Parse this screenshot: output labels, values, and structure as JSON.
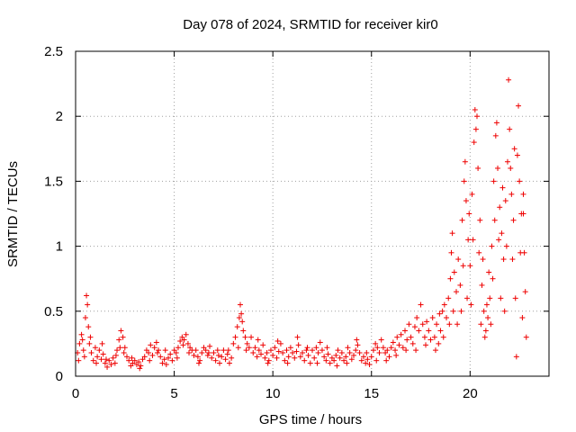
{
  "chart_data": {
    "type": "scatter",
    "title": "Day 078 of 2024, SRMTID for receiver kir0",
    "xlabel": "GPS time / hours",
    "ylabel": "SRMTID / TECUs",
    "xlim": [
      0,
      24
    ],
    "ylim": [
      0,
      2.5
    ],
    "xticks": [
      0,
      5,
      10,
      15,
      20
    ],
    "xtick_labels": [
      "0",
      "5",
      "10",
      "15",
      "20"
    ],
    "yticks": [
      0,
      0.5,
      1,
      1.5,
      2,
      2.5
    ],
    "ytick_labels": [
      "0",
      "0.5",
      "1",
      "1.5",
      "2",
      "2.5"
    ],
    "grid": true,
    "marker": "+",
    "series": [
      {
        "name": "kir0",
        "color": "#ee0000",
        "points": [
          [
            0.1,
            0.18
          ],
          [
            0.2,
            0.25
          ],
          [
            0.3,
            0.32
          ],
          [
            0.4,
            0.2
          ],
          [
            0.5,
            0.45
          ],
          [
            0.55,
            0.62
          ],
          [
            0.6,
            0.55
          ],
          [
            0.65,
            0.38
          ],
          [
            0.7,
            0.25
          ],
          [
            0.8,
            0.18
          ],
          [
            0.9,
            0.12
          ],
          [
            1.0,
            0.22
          ],
          [
            1.1,
            0.15
          ],
          [
            1.2,
            0.2
          ],
          [
            1.3,
            0.13
          ],
          [
            1.4,
            0.17
          ],
          [
            1.5,
            0.1
          ],
          [
            1.6,
            0.07
          ],
          [
            1.7,
            0.12
          ],
          [
            1.8,
            0.09
          ],
          [
            1.9,
            0.14
          ],
          [
            2.0,
            0.1
          ],
          [
            2.1,
            0.2
          ],
          [
            2.2,
            0.28
          ],
          [
            2.3,
            0.35
          ],
          [
            2.4,
            0.3
          ],
          [
            2.5,
            0.22
          ],
          [
            2.6,
            0.15
          ],
          [
            2.7,
            0.12
          ],
          [
            2.8,
            0.08
          ],
          [
            2.9,
            0.1
          ],
          [
            3.0,
            0.12
          ],
          [
            3.1,
            0.09
          ],
          [
            3.2,
            0.11
          ],
          [
            3.3,
            0.08
          ],
          [
            3.4,
            0.13
          ],
          [
            3.5,
            0.15
          ],
          [
            3.6,
            0.2
          ],
          [
            3.7,
            0.18
          ],
          [
            3.8,
            0.24
          ],
          [
            3.9,
            0.16
          ],
          [
            4.0,
            0.22
          ],
          [
            4.1,
            0.26
          ],
          [
            4.2,
            0.2
          ],
          [
            4.3,
            0.15
          ],
          [
            4.4,
            0.1
          ],
          [
            4.5,
            0.13
          ],
          [
            4.6,
            0.09
          ],
          [
            4.7,
            0.14
          ],
          [
            4.8,
            0.17
          ],
          [
            4.9,
            0.12
          ],
          [
            5.0,
            0.2
          ],
          [
            5.1,
            0.18
          ],
          [
            5.2,
            0.22
          ],
          [
            5.3,
            0.27
          ],
          [
            5.4,
            0.3
          ],
          [
            5.5,
            0.28
          ],
          [
            5.6,
            0.32
          ],
          [
            5.7,
            0.25
          ],
          [
            5.8,
            0.22
          ],
          [
            5.9,
            0.2
          ],
          [
            6.0,
            0.16
          ],
          [
            6.1,
            0.2
          ],
          [
            6.2,
            0.15
          ],
          [
            6.3,
            0.12
          ],
          [
            6.4,
            0.18
          ],
          [
            6.5,
            0.22
          ],
          [
            6.6,
            0.2
          ],
          [
            6.7,
            0.16
          ],
          [
            6.8,
            0.23
          ],
          [
            6.9,
            0.14
          ],
          [
            7.0,
            0.18
          ],
          [
            7.1,
            0.12
          ],
          [
            7.2,
            0.2
          ],
          [
            7.3,
            0.1
          ],
          [
            7.4,
            0.15
          ],
          [
            7.5,
            0.2
          ],
          [
            7.6,
            0.13
          ],
          [
            7.7,
            0.17
          ],
          [
            7.8,
            0.1
          ],
          [
            7.9,
            0.14
          ],
          [
            8.0,
            0.25
          ],
          [
            8.1,
            0.3
          ],
          [
            8.2,
            0.38
          ],
          [
            8.3,
            0.45
          ],
          [
            8.35,
            0.55
          ],
          [
            8.4,
            0.48
          ],
          [
            8.5,
            0.35
          ],
          [
            8.6,
            0.3
          ],
          [
            8.7,
            0.25
          ],
          [
            8.8,
            0.22
          ],
          [
            8.9,
            0.3
          ],
          [
            9.0,
            0.18
          ],
          [
            9.1,
            0.22
          ],
          [
            9.2,
            0.15
          ],
          [
            9.3,
            0.2
          ],
          [
            9.4,
            0.17
          ],
          [
            9.5,
            0.24
          ],
          [
            9.6,
            0.14
          ],
          [
            9.7,
            0.18
          ],
          [
            9.8,
            0.12
          ],
          [
            9.9,
            0.2
          ],
          [
            10.0,
            0.16
          ],
          [
            10.1,
            0.22
          ],
          [
            10.2,
            0.14
          ],
          [
            10.3,
            0.19
          ],
          [
            10.4,
            0.25
          ],
          [
            10.5,
            0.18
          ],
          [
            10.6,
            0.12
          ],
          [
            10.7,
            0.2
          ],
          [
            10.8,
            0.15
          ],
          [
            10.9,
            0.22
          ],
          [
            11.0,
            0.18
          ],
          [
            11.1,
            0.14
          ],
          [
            11.2,
            0.19
          ],
          [
            11.3,
            0.24
          ],
          [
            11.4,
            0.15
          ],
          [
            11.5,
            0.18
          ],
          [
            11.6,
            0.12
          ],
          [
            11.7,
            0.2
          ],
          [
            11.8,
            0.16
          ],
          [
            11.9,
            0.1
          ],
          [
            12.0,
            0.2
          ],
          [
            12.1,
            0.14
          ],
          [
            12.2,
            0.22
          ],
          [
            12.3,
            0.18
          ],
          [
            12.4,
            0.26
          ],
          [
            12.5,
            0.2
          ],
          [
            12.6,
            0.15
          ],
          [
            12.7,
            0.12
          ],
          [
            12.8,
            0.17
          ],
          [
            12.9,
            0.1
          ],
          [
            13.0,
            0.14
          ],
          [
            13.1,
            0.12
          ],
          [
            13.2,
            0.16
          ],
          [
            13.3,
            0.2
          ],
          [
            13.4,
            0.14
          ],
          [
            13.5,
            0.18
          ],
          [
            13.6,
            0.12
          ],
          [
            13.7,
            0.15
          ],
          [
            13.8,
            0.22
          ],
          [
            13.9,
            0.18
          ],
          [
            14.0,
            0.13
          ],
          [
            14.1,
            0.16
          ],
          [
            14.2,
            0.2
          ],
          [
            14.3,
            0.24
          ],
          [
            14.4,
            0.18
          ],
          [
            14.5,
            0.12
          ],
          [
            14.6,
            0.15
          ],
          [
            14.7,
            0.1
          ],
          [
            14.8,
            0.13
          ],
          [
            14.9,
            0.09
          ],
          [
            15.0,
            0.15
          ],
          [
            15.1,
            0.2
          ],
          [
            15.2,
            0.25
          ],
          [
            15.3,
            0.22
          ],
          [
            15.4,
            0.18
          ],
          [
            15.5,
            0.28
          ],
          [
            15.6,
            0.22
          ],
          [
            15.7,
            0.18
          ],
          [
            15.8,
            0.2
          ],
          [
            15.9,
            0.15
          ],
          [
            16.0,
            0.22
          ],
          [
            16.1,
            0.26
          ],
          [
            16.2,
            0.2
          ],
          [
            16.3,
            0.3
          ],
          [
            16.4,
            0.24
          ],
          [
            16.5,
            0.32
          ],
          [
            16.6,
            0.22
          ],
          [
            16.7,
            0.35
          ],
          [
            16.8,
            0.28
          ],
          [
            16.9,
            0.4
          ],
          [
            17.0,
            0.3
          ],
          [
            17.1,
            0.25
          ],
          [
            17.2,
            0.38
          ],
          [
            17.3,
            0.45
          ],
          [
            17.4,
            0.35
          ],
          [
            17.5,
            0.55
          ],
          [
            17.6,
            0.4
          ],
          [
            17.7,
            0.3
          ],
          [
            17.8,
            0.42
          ],
          [
            17.9,
            0.35
          ],
          [
            18.0,
            0.28
          ],
          [
            18.1,
            0.45
          ],
          [
            18.2,
            0.3
          ],
          [
            18.3,
            0.4
          ],
          [
            18.4,
            0.25
          ],
          [
            18.5,
            0.35
          ],
          [
            18.6,
            0.5
          ],
          [
            18.7,
            0.55
          ],
          [
            18.8,
            0.45
          ],
          [
            18.9,
            0.6
          ],
          [
            19.0,
            0.75
          ],
          [
            19.05,
            0.95
          ],
          [
            19.1,
            1.1
          ],
          [
            19.2,
            0.8
          ],
          [
            19.3,
            0.65
          ],
          [
            19.4,
            0.9
          ],
          [
            19.5,
            0.7
          ],
          [
            19.6,
            1.2
          ],
          [
            19.7,
            1.5
          ],
          [
            19.75,
            1.65
          ],
          [
            19.8,
            1.35
          ],
          [
            19.9,
            1.05
          ],
          [
            20.0,
            0.85
          ],
          [
            20.1,
            1.4
          ],
          [
            20.2,
            1.8
          ],
          [
            20.25,
            2.05
          ],
          [
            20.3,
            1.9
          ],
          [
            20.35,
            2.0
          ],
          [
            20.4,
            1.6
          ],
          [
            20.5,
            1.2
          ],
          [
            20.6,
            0.7
          ],
          [
            20.7,
            0.5
          ],
          [
            20.8,
            0.35
          ],
          [
            20.9,
            0.45
          ],
          [
            21.0,
            0.6
          ],
          [
            21.1,
            1.0
          ],
          [
            21.2,
            1.5
          ],
          [
            21.3,
            1.85
          ],
          [
            21.35,
            1.95
          ],
          [
            21.4,
            1.6
          ],
          [
            21.5,
            1.3
          ],
          [
            21.6,
            1.1
          ],
          [
            21.7,
            0.9
          ],
          [
            21.8,
            1.35
          ],
          [
            21.9,
            1.65
          ],
          [
            21.95,
            2.28
          ],
          [
            22.0,
            1.9
          ],
          [
            22.1,
            1.4
          ],
          [
            22.2,
            1.2
          ],
          [
            22.3,
            0.6
          ],
          [
            22.35,
            0.15
          ],
          [
            22.4,
            1.7
          ],
          [
            22.45,
            2.08
          ],
          [
            22.5,
            1.5
          ],
          [
            22.6,
            1.25
          ],
          [
            22.7,
            1.4
          ],
          [
            22.75,
            0.95
          ],
          [
            22.8,
            0.65
          ],
          [
            22.85,
            0.3
          ],
          [
            0.15,
            0.12
          ],
          [
            0.35,
            0.28
          ],
          [
            0.45,
            0.15
          ],
          [
            0.75,
            0.3
          ],
          [
            1.05,
            0.1
          ],
          [
            1.35,
            0.25
          ],
          [
            1.55,
            0.13
          ],
          [
            2.05,
            0.16
          ],
          [
            2.25,
            0.22
          ],
          [
            2.45,
            0.18
          ],
          [
            2.85,
            0.14
          ],
          [
            3.25,
            0.06
          ],
          [
            3.75,
            0.12
          ],
          [
            4.15,
            0.18
          ],
          [
            4.55,
            0.2
          ],
          [
            5.15,
            0.14
          ],
          [
            5.45,
            0.24
          ],
          [
            5.75,
            0.18
          ],
          [
            6.25,
            0.1
          ],
          [
            6.75,
            0.18
          ],
          [
            7.25,
            0.16
          ],
          [
            7.75,
            0.2
          ],
          [
            8.25,
            0.22
          ],
          [
            8.45,
            0.42
          ],
          [
            8.65,
            0.2
          ],
          [
            9.25,
            0.28
          ],
          [
            9.75,
            0.1
          ],
          [
            10.25,
            0.27
          ],
          [
            10.75,
            0.1
          ],
          [
            11.25,
            0.3
          ],
          [
            11.75,
            0.22
          ],
          [
            12.25,
            0.1
          ],
          [
            12.75,
            0.22
          ],
          [
            13.25,
            0.08
          ],
          [
            13.75,
            0.1
          ],
          [
            14.25,
            0.28
          ],
          [
            14.75,
            0.18
          ],
          [
            15.25,
            0.12
          ],
          [
            15.75,
            0.12
          ],
          [
            16.25,
            0.16
          ],
          [
            16.75,
            0.2
          ],
          [
            17.25,
            0.2
          ],
          [
            17.75,
            0.24
          ],
          [
            18.25,
            0.2
          ],
          [
            18.45,
            0.48
          ],
          [
            18.65,
            0.3
          ],
          [
            18.95,
            0.4
          ],
          [
            19.15,
            0.5
          ],
          [
            19.35,
            0.4
          ],
          [
            19.55,
            0.5
          ],
          [
            19.65,
            0.85
          ],
          [
            19.85,
            0.6
          ],
          [
            19.95,
            1.25
          ],
          [
            20.05,
            0.55
          ],
          [
            20.15,
            1.05
          ],
          [
            20.45,
            0.95
          ],
          [
            20.55,
            0.4
          ],
          [
            20.65,
            0.9
          ],
          [
            20.75,
            0.3
          ],
          [
            20.85,
            0.55
          ],
          [
            20.95,
            0.8
          ],
          [
            21.05,
            0.4
          ],
          [
            21.15,
            0.75
          ],
          [
            21.25,
            1.2
          ],
          [
            21.45,
            1.05
          ],
          [
            21.55,
            0.6
          ],
          [
            21.65,
            1.45
          ],
          [
            21.75,
            0.5
          ],
          [
            21.85,
            1.0
          ],
          [
            22.05,
            1.6
          ],
          [
            22.15,
            0.9
          ],
          [
            22.25,
            1.75
          ],
          [
            22.55,
            0.95
          ],
          [
            22.65,
            0.45
          ],
          [
            22.7,
            1.25
          ]
        ]
      }
    ]
  }
}
